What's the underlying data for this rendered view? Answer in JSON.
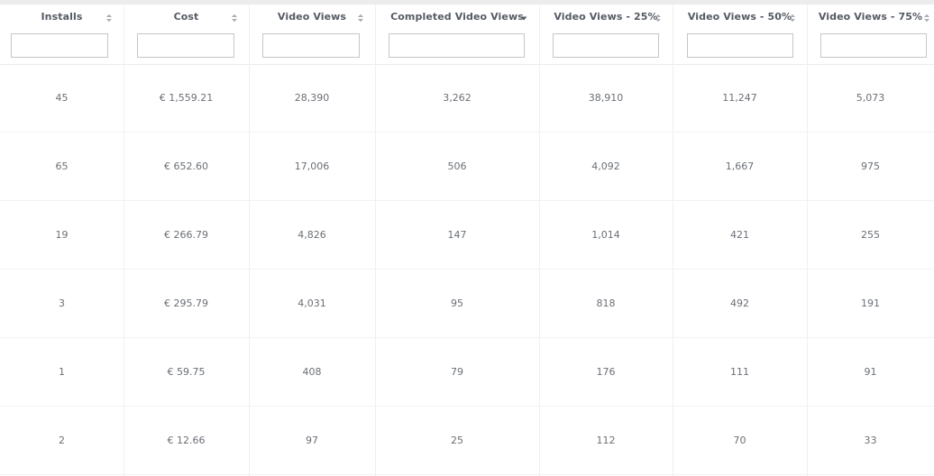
{
  "columns": [
    {
      "label": "Installs",
      "sort": "none",
      "filter_value": ""
    },
    {
      "label": "Cost",
      "sort": "none",
      "filter_value": ""
    },
    {
      "label": "Video Views",
      "sort": "none",
      "filter_value": ""
    },
    {
      "label": "Completed Video Views",
      "sort": "desc",
      "filter_value": ""
    },
    {
      "label": "Video Views - 25%",
      "sort": "none",
      "filter_value": ""
    },
    {
      "label": "Video Views - 50%",
      "sort": "none",
      "filter_value": ""
    },
    {
      "label": "Video Views - 75%",
      "sort": "none",
      "filter_value": ""
    }
  ],
  "rows": [
    [
      "45",
      "€ 1,559.21",
      "28,390",
      "3,262",
      "38,910",
      "11,247",
      "5,073"
    ],
    [
      "65",
      "€ 652.60",
      "17,006",
      "506",
      "4,092",
      "1,667",
      "975"
    ],
    [
      "19",
      "€ 266.79",
      "4,826",
      "147",
      "1,014",
      "421",
      "255"
    ],
    [
      "3",
      "€ 295.79",
      "4,031",
      "95",
      "818",
      "492",
      "191"
    ],
    [
      "1",
      "€ 59.75",
      "408",
      "79",
      "176",
      "111",
      "91"
    ],
    [
      "2",
      "€ 12.66",
      "97",
      "25",
      "112",
      "70",
      "33"
    ]
  ],
  "colors": {
    "header_text": "#555a63",
    "cell_text": "#6b6f76",
    "grid_line": "#f0f0f0",
    "sort_icon": "#a9adb3",
    "sort_icon_active": "#555a63"
  }
}
